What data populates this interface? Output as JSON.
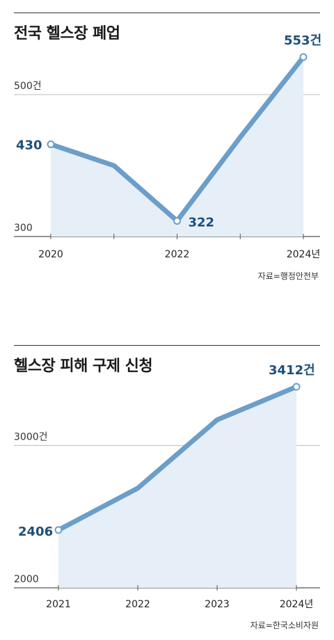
{
  "chart_data": [
    {
      "type": "area",
      "title": "전국 헬스장 폐업",
      "source": "자료=행정안전부",
      "x": [
        2020,
        2021,
        2022,
        2023,
        2024
      ],
      "x_tick_labels": [
        "2020",
        "",
        "2022",
        "",
        "2024년"
      ],
      "series": [
        {
          "values": [
            430,
            400,
            322,
            440,
            553
          ]
        }
      ],
      "data_labels": [
        {
          "index": 0,
          "text": "430"
        },
        {
          "index": 2,
          "text": "322"
        },
        {
          "index": 4,
          "text": "553건"
        }
      ],
      "y_tick_labels": [
        "300",
        "500건"
      ],
      "y_ticks": [
        300,
        500
      ],
      "ylim": [
        300,
        553
      ],
      "grid": true,
      "line_color": "#6b9ec8",
      "fill_color": "#e6eff8",
      "label_color": "#1d4f7a"
    },
    {
      "type": "area",
      "title": "헬스장 피해 구제 신청",
      "source": "자료=한국소비자원",
      "x": [
        2021,
        2022,
        2023,
        2024
      ],
      "x_tick_labels": [
        "2021",
        "2022",
        "2023",
        "2024년"
      ],
      "series": [
        {
          "values": [
            2406,
            2700,
            3180,
            3412
          ]
        }
      ],
      "data_labels": [
        {
          "index": 0,
          "text": "2406"
        },
        {
          "index": 3,
          "text": "3412건"
        }
      ],
      "y_tick_labels": [
        "2000",
        "3000건"
      ],
      "y_ticks": [
        2000,
        3000
      ],
      "ylim": [
        2000,
        3412
      ],
      "grid": true,
      "line_color": "#6b9ec8",
      "fill_color": "#e6eff8",
      "label_color": "#1d4f7a"
    }
  ]
}
